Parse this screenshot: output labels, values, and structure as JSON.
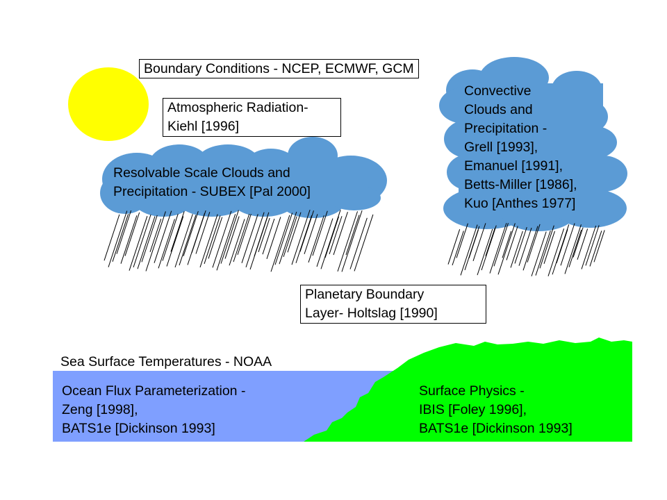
{
  "colors": {
    "sun": "#ffff00",
    "cloud": "#5b9bd5",
    "ocean": "#7f9fff",
    "land": "#00ff00",
    "rain": "#000000"
  },
  "labels": {
    "boundary_conditions": "Boundary Conditions - NCEP, ECMWF, GCM",
    "radiation": [
      "Atmospheric Radiation-",
      "Kiehl [1996]"
    ],
    "resolvable_clouds": [
      "Resolvable Scale Clouds and",
      "Precipitation - SUBEX [Pal 2000]"
    ],
    "convective_clouds": [
      "Convective",
      "Clouds and",
      "Precipitation -",
      "Grell [1993],",
      "Emanuel [1991],",
      "Betts-Miller [1986],",
      "Kuo [Anthes 1977]"
    ],
    "pbl": [
      "Planetary Boundary",
      "Layer- Holtslag [1990]"
    ],
    "sst": "Sea Surface Temperatures - NOAA",
    "ocean_flux": [
      "Ocean Flux Parameterization -",
      "Zeng [1998],",
      "BATS1e [Dickinson 1993]"
    ],
    "surface_physics": [
      "Surface Physics -",
      "IBIS [Foley 1996],",
      "BATS1e [Dickinson 1993]"
    ]
  }
}
